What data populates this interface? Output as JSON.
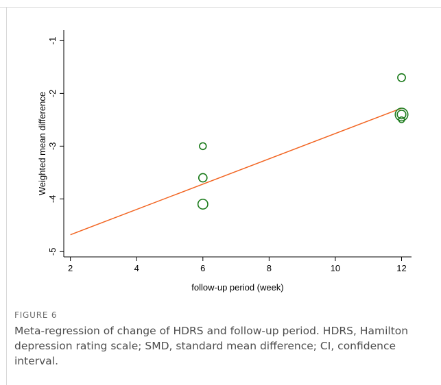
{
  "chart_data": {
    "type": "scatter",
    "xlabel": "follow-up period (week)",
    "ylabel": "Weighted mean difference",
    "xlim": [
      1.8,
      12.3
    ],
    "ylim": [
      -5.1,
      -0.8
    ],
    "xticks": [
      2,
      4,
      6,
      8,
      10,
      12
    ],
    "yticks": [
      -1,
      -2,
      -3,
      -4,
      -5
    ],
    "grid": false,
    "points": [
      {
        "x": 6,
        "y": -3.0,
        "weight": 1.0
      },
      {
        "x": 6,
        "y": -3.6,
        "weight": 1.5
      },
      {
        "x": 6,
        "y": -4.1,
        "weight": 2.1
      },
      {
        "x": 12,
        "y": -1.7,
        "weight": 1.3
      },
      {
        "x": 12,
        "y": -2.4,
        "weight": 3.5
      },
      {
        "x": 12,
        "y": -2.4,
        "weight": 1.6
      },
      {
        "x": 12,
        "y": -2.5,
        "weight": 0.7
      }
    ],
    "fit_line": {
      "x": [
        2,
        12
      ],
      "y": [
        -4.68,
        -2.28
      ]
    },
    "marker_color": "#1a7a1a",
    "line_color": "#f26522"
  },
  "figure": {
    "label": "FIGURE 6",
    "caption": "Meta-regression of change of HDRS and follow-up period. HDRS, Hamilton depression rating scale; SMD, standard mean difference; CI, confidence interval."
  }
}
